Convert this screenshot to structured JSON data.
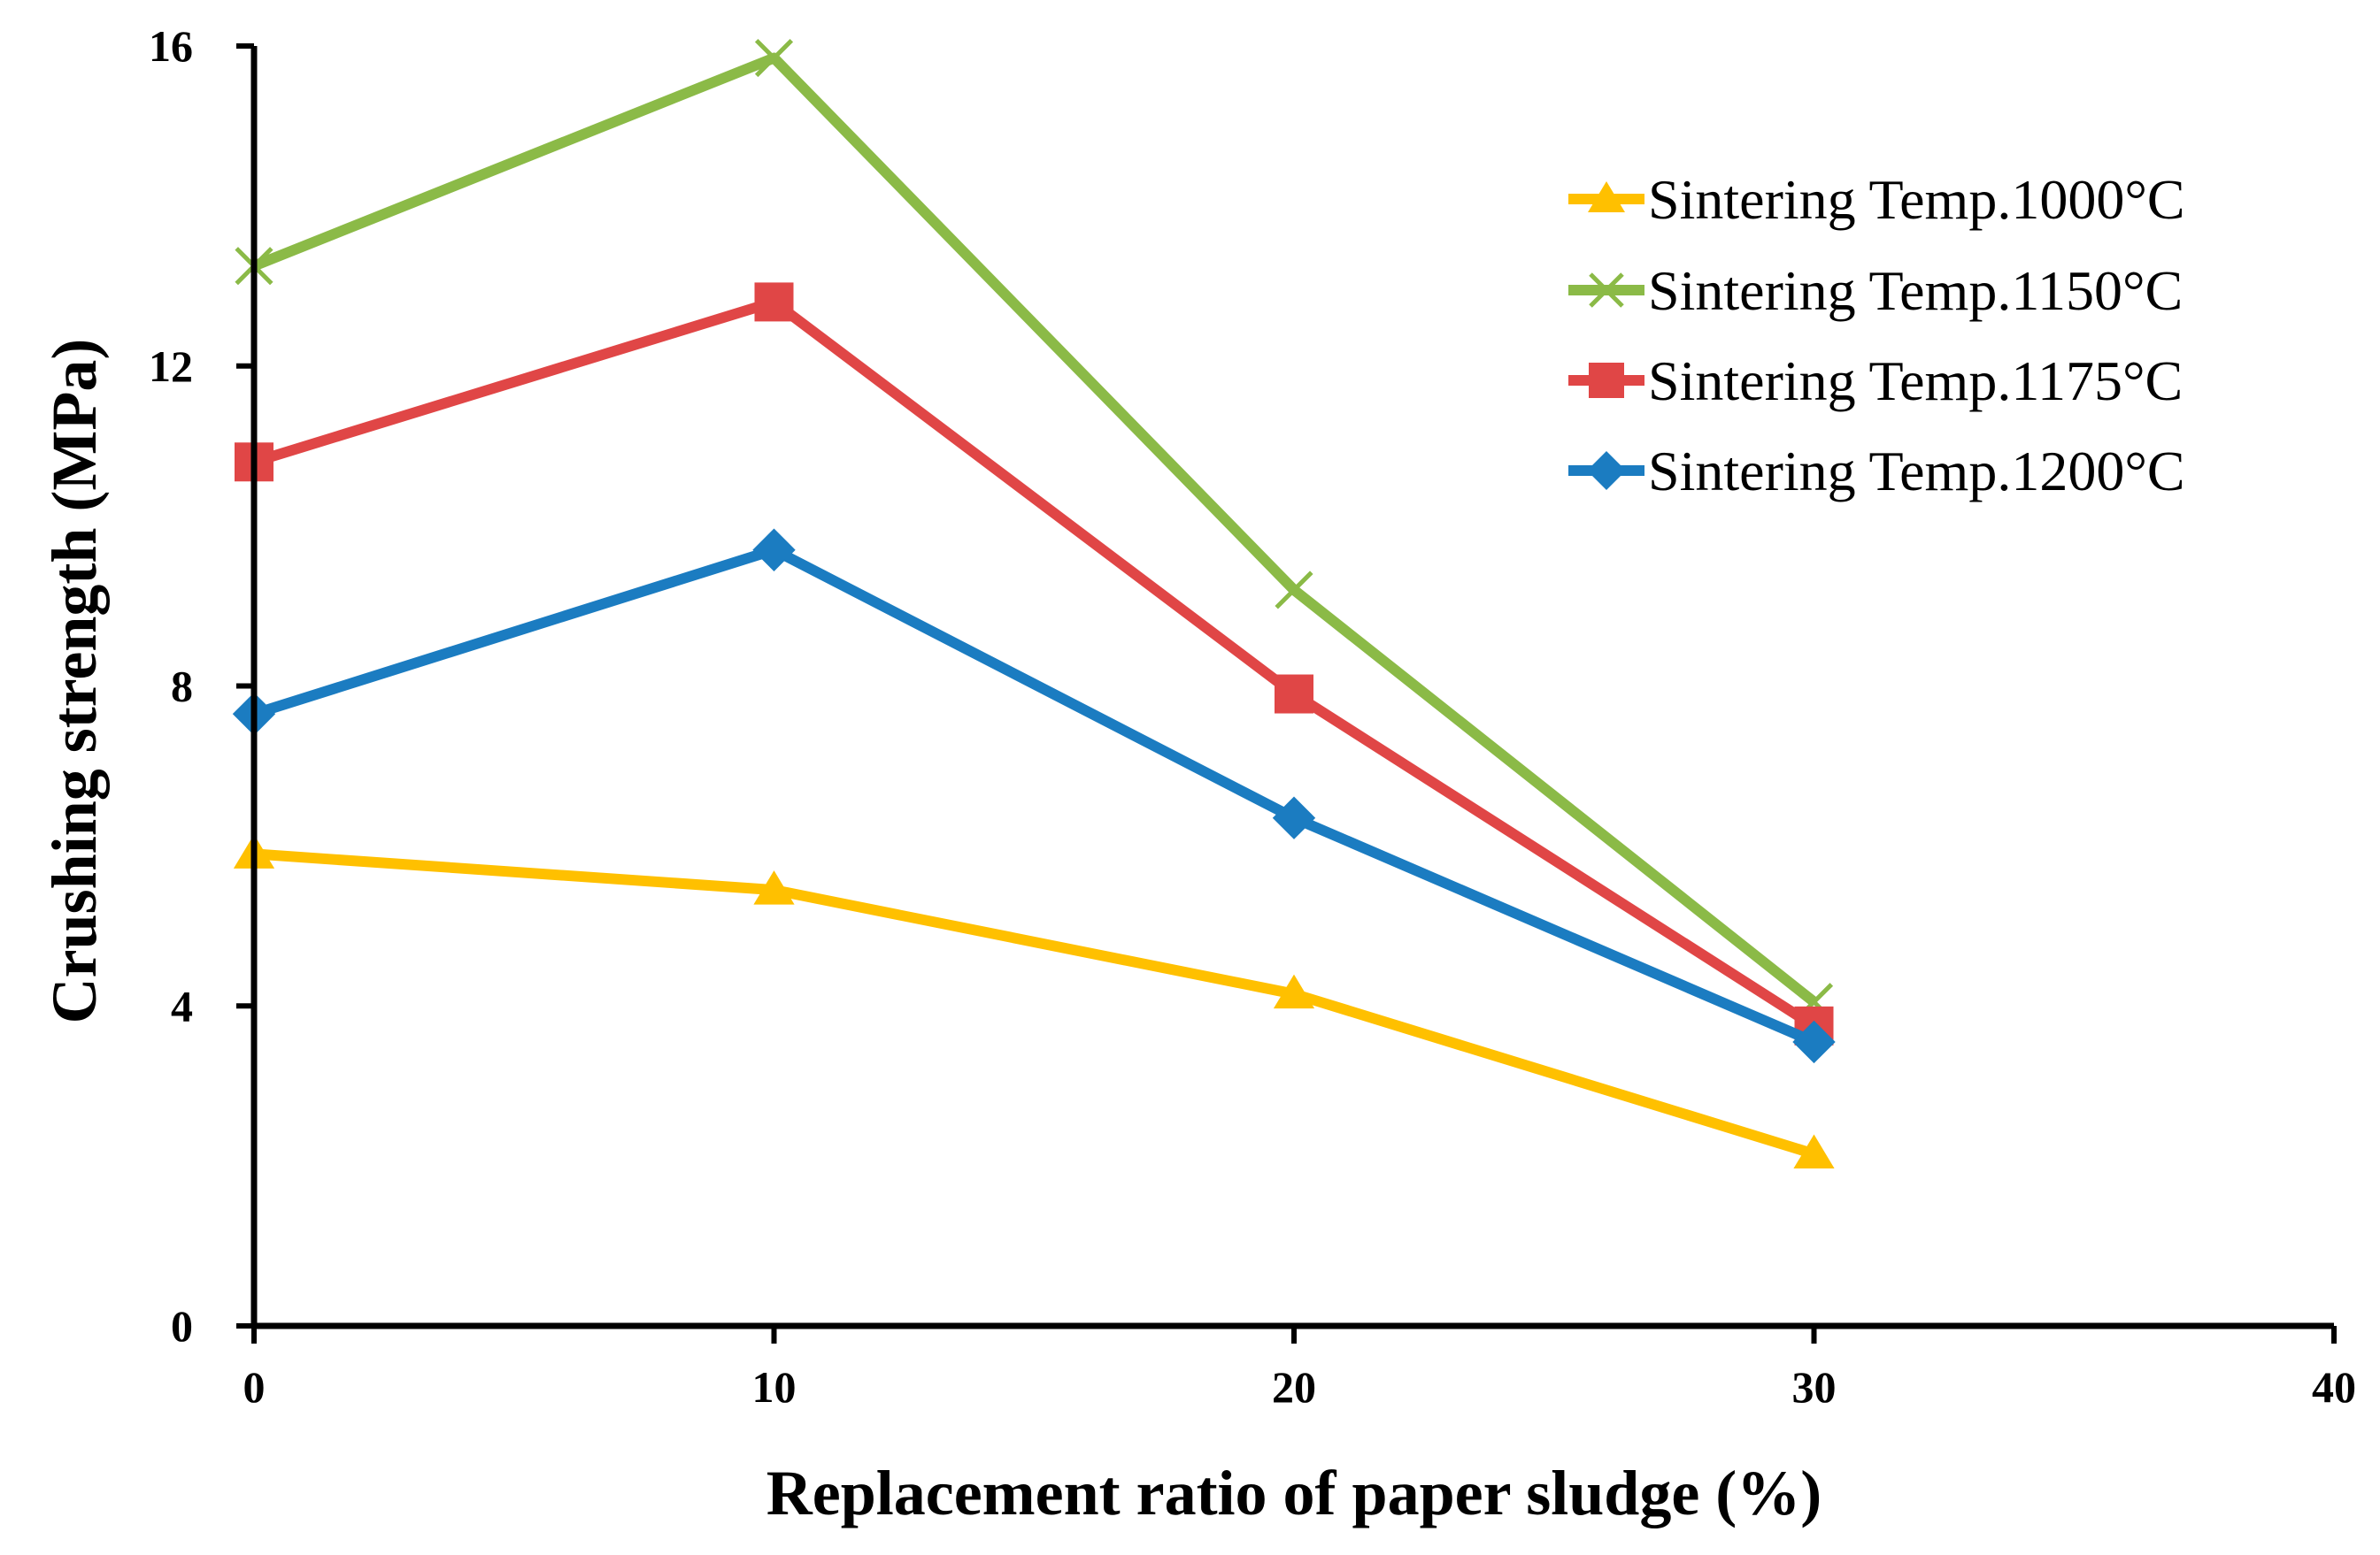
{
  "chart_data": {
    "type": "line",
    "title": "",
    "xlabel": "Replacement ratio of paper sludge (%)",
    "ylabel": "Crushing strength (MPa)",
    "xlim": [
      0,
      40
    ],
    "ylim": [
      0,
      16
    ],
    "xticks": [
      0,
      10,
      20,
      30,
      40
    ],
    "yticks": [
      0,
      4,
      8,
      12,
      16
    ],
    "grid": false,
    "legend_position": "top-right",
    "series": [
      {
        "name": "Sintering Temp.1000°C",
        "marker": "triangle",
        "color": "#FFC000",
        "x": [
          0,
          10,
          20,
          30
        ],
        "values": [
          5.9,
          5.45,
          4.15,
          2.15
        ]
      },
      {
        "name": "Sintering Temp.1150°C",
        "marker": "x",
        "color": "#8BBA47",
        "x": [
          0,
          10,
          20,
          30
        ],
        "values": [
          13.25,
          15.85,
          9.2,
          4.05
        ]
      },
      {
        "name": "Sintering Temp.1175°C",
        "marker": "square",
        "color": "#E04646",
        "x": [
          0,
          10,
          20,
          30
        ],
        "values": [
          10.8,
          12.8,
          7.9,
          3.75
        ]
      },
      {
        "name": "Sintering Temp.1200°C",
        "marker": "diamond",
        "color": "#1B7CC1",
        "x": [
          0,
          10,
          20,
          30
        ],
        "values": [
          7.65,
          9.7,
          6.35,
          3.55
        ]
      }
    ]
  }
}
